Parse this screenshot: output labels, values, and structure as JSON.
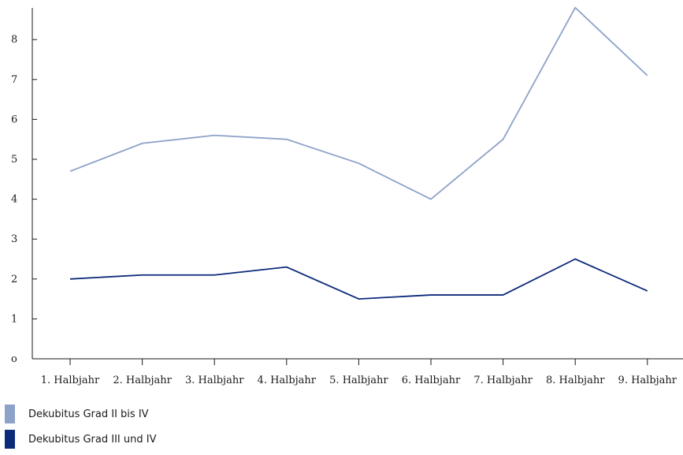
{
  "chart_data": {
    "type": "line",
    "categories": [
      "1. Halbjahr",
      "2. Halbjahr",
      "3. Halbjahr",
      "4. Halbjahr",
      "5. Halbjahr",
      "6. Halbjahr",
      "7. Halbjahr",
      "8. Halbjahr",
      "9. Halbjahr"
    ],
    "series": [
      {
        "name": "Dekubitus Grad II bis IV",
        "color": "#8da2c9",
        "values": [
          4.7,
          5.4,
          5.6,
          5.5,
          4.9,
          4.0,
          5.5,
          8.8,
          7.1
        ]
      },
      {
        "name": "Dekubitus Grad III und IV",
        "color": "#0c2a7a",
        "values": [
          2.0,
          2.1,
          2.1,
          2.3,
          1.5,
          1.6,
          1.6,
          2.5,
          1.7
        ]
      }
    ],
    "yticks": [
      "o",
      "1",
      "2",
      "3",
      "4",
      "5",
      "6",
      "7",
      "8"
    ],
    "ylim": [
      0,
      8.8
    ],
    "grid": false,
    "legend_position": "bottom-left",
    "title": "",
    "xlabel": "",
    "ylabel": ""
  }
}
